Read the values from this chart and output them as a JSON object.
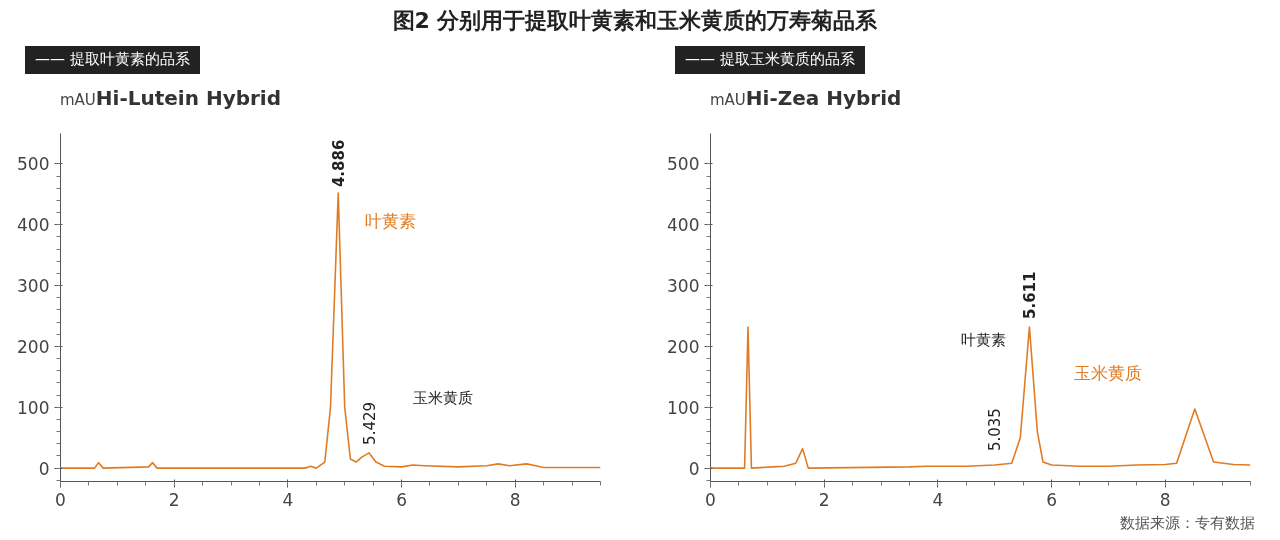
{
  "chart_data": [
    {
      "type": "line",
      "title": "Hi-Lutein Hybrid",
      "subtitle": "—— 提取叶黄素的品系",
      "ylabel": "mAU",
      "annotations": [
        "图2 分别用于提取叶黄素和玉米黄质的万寿菊品系",
        {
          "text": "4.886",
          "x": 4.886,
          "y": 452
        },
        {
          "text": "5.429",
          "x": 5.429,
          "y": 25
        },
        "叶黄素",
        "玉米黄质"
      ],
      "series": [
        {
          "color": "#e07b24",
          "x": [
            0,
            0.6,
            0.67,
            0.75,
            1.55,
            1.62,
            1.7,
            4.3,
            4.4,
            4.5,
            4.65,
            4.75,
            4.886,
            5.0,
            5.1,
            5.2,
            5.3,
            5.429,
            5.55,
            5.7,
            6.0,
            6.2,
            6.4,
            7.0,
            7.5,
            7.7,
            7.9,
            8.2,
            8.4,
            8.5,
            9.5
          ],
          "values": [
            0,
            0,
            9,
            0,
            2,
            9,
            0,
            0,
            3,
            0,
            10,
            100,
            452,
            100,
            15,
            10,
            18,
            25,
            10,
            3,
            2,
            5,
            4,
            2,
            4,
            7,
            4,
            7,
            3,
            1,
            1
          ]
        }
      ],
      "xlim": [
        0,
        9.5
      ],
      "xticks": [
        0,
        2,
        4,
        6,
        8
      ],
      "ylim": [
        -22,
        550
      ],
      "yticks": [
        0,
        100,
        200,
        300,
        400,
        500
      ],
      "grid": false,
      "marker": "none",
      "line_style": "solid"
    },
    {
      "type": "line",
      "title": "Hi-Zea Hybrid",
      "subtitle": "—— 提取玉米黄质的品系",
      "ylabel": "mAU",
      "annotations": [
        "数据来源：专有数据",
        {
          "text": "5.611",
          "x": 5.611,
          "y": 232
        },
        {
          "text": "5.035",
          "x": 5.035,
          "y": 5
        },
        "叶黄素",
        "玉米黄质"
      ],
      "series": [
        {
          "color": "#e07b24",
          "x": [
            0,
            0.6,
            0.66,
            0.72,
            1.1,
            1.3,
            1.5,
            1.62,
            1.72,
            3.5,
            3.8,
            4.5,
            5.0,
            5.3,
            5.45,
            5.611,
            5.75,
            5.85,
            6.0,
            6.5,
            7.0,
            7.5,
            8.0,
            8.2,
            8.35,
            8.52,
            8.7,
            8.85,
            9.2,
            9.5
          ],
          "values": [
            0,
            0,
            232,
            0,
            2,
            3,
            8,
            32,
            0,
            2,
            3,
            3,
            5,
            8,
            50,
            232,
            60,
            10,
            5,
            3,
            3,
            5,
            6,
            8,
            50,
            97,
            50,
            10,
            6,
            5
          ]
        }
      ],
      "xlim": [
        0,
        9.5
      ],
      "xticks": [
        0,
        2,
        4,
        6,
        8
      ],
      "ylim": [
        -22,
        550
      ],
      "yticks": [
        0,
        100,
        200,
        300,
        400,
        500
      ],
      "grid": false,
      "marker": "none",
      "line_style": "solid"
    }
  ]
}
